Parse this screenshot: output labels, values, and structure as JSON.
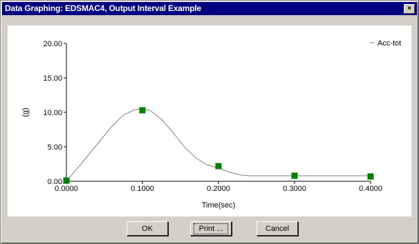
{
  "window": {
    "title": "Data Graphing: EDSMAC4, Output Interval Example",
    "close_label": "×"
  },
  "buttons": {
    "ok": "OK",
    "print": "Print ...",
    "cancel": "Cancel"
  },
  "colors": {
    "titlebar": "#000080",
    "marker": "#008000",
    "curve": "#808080"
  },
  "chart_data": {
    "type": "line",
    "xlabel": "Time(sec)",
    "ylabel": "(g)",
    "xlim": [
      0.0,
      0.4
    ],
    "ylim": [
      0.0,
      20.0
    ],
    "xticks": [
      0.0,
      0.1,
      0.2,
      0.3,
      0.4
    ],
    "xtick_labels": [
      "0.0000",
      "0.1000",
      "0.2000",
      "0.3000",
      "0.4000"
    ],
    "yticks": [
      0.0,
      5.0,
      10.0,
      15.0,
      20.0
    ],
    "ytick_labels": [
      "0.00",
      "5.00",
      "10.00",
      "15.00",
      "20.00"
    ],
    "grid": false,
    "legend_position": "top-right",
    "series": [
      {
        "name": "Acc-tot",
        "curve_x": [
          0.0,
          0.02,
          0.04,
          0.06,
          0.075,
          0.09,
          0.1,
          0.11,
          0.125,
          0.14,
          0.155,
          0.17,
          0.185,
          0.2,
          0.215,
          0.23,
          0.24,
          0.26,
          0.3,
          0.35,
          0.4
        ],
        "curve_y": [
          0.0,
          2.6,
          5.3,
          8.0,
          9.6,
          10.4,
          10.5,
          10.3,
          9.0,
          7.1,
          5.0,
          3.4,
          2.4,
          1.9,
          1.3,
          0.9,
          0.8,
          0.8,
          0.8,
          0.8,
          0.8
        ],
        "markers_x": [
          0.0,
          0.1,
          0.2,
          0.3,
          0.4
        ],
        "markers_y": [
          0.1,
          10.3,
          2.2,
          0.8,
          0.7
        ]
      }
    ]
  }
}
